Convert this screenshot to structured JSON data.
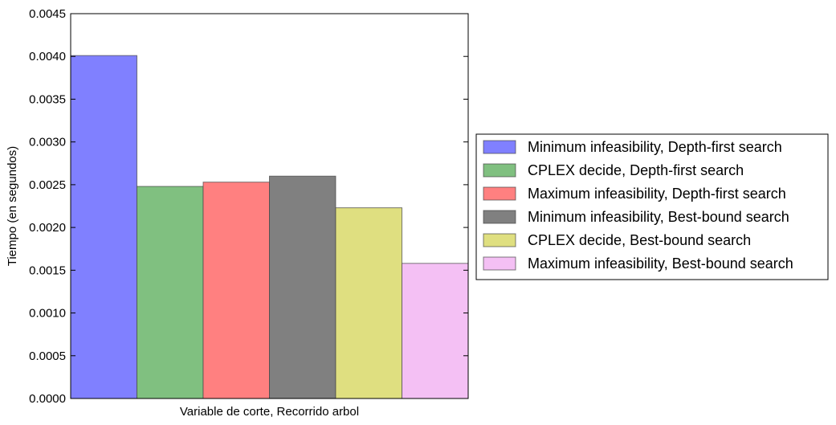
{
  "chart_data": {
    "type": "bar",
    "title": "",
    "xlabel": "Variable de corte, Recorrido arbol",
    "ylabel": "Tiempo (en segundos)",
    "ylim": [
      0,
      0.0045
    ],
    "yticks": [
      "0.0000",
      "0.0005",
      "0.0010",
      "0.0015",
      "0.0020",
      "0.0025",
      "0.0030",
      "0.0035",
      "0.0040",
      "0.0045"
    ],
    "grid": false,
    "legend_placement": "center-right outside",
    "series": [
      {
        "name": "Minimum infeasibility, Depth-first search",
        "value": 0.00401,
        "color": "#8080ff"
      },
      {
        "name": "CPLEX decide, Depth-first search",
        "value": 0.00248,
        "color": "#80c080"
      },
      {
        "name": "Maximum infeasibility, Depth-first search",
        "value": 0.00253,
        "color": "#ff8080"
      },
      {
        "name": "Minimum infeasibility, Best-bound search",
        "value": 0.0026,
        "color": "#808080"
      },
      {
        "name": "CPLEX decide, Best-bound search",
        "value": 0.00223,
        "color": "#dfdf80"
      },
      {
        "name": "Maximum infeasibility, Best-bound search",
        "value": 0.00158,
        "color": "#f4c0f4"
      }
    ]
  }
}
